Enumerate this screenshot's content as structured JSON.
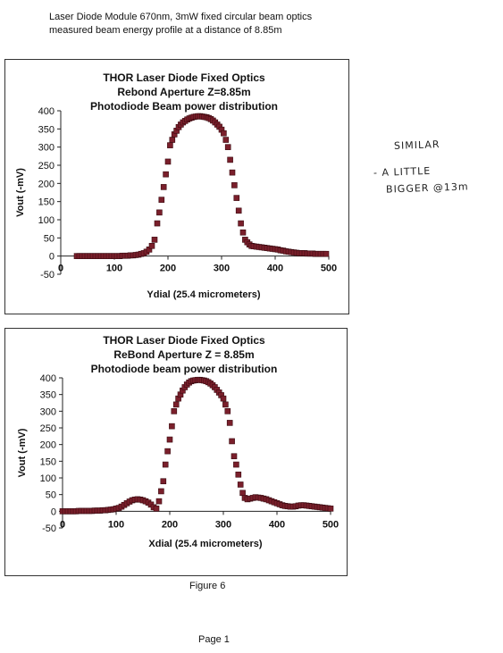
{
  "header": {
    "line1": "Laser Diode Module 670nm, 3mW  fixed circular beam optics",
    "line2": "measured beam energy profile at a distance of 8.85m"
  },
  "annotations": {
    "note1": "SIMILAR",
    "note2": "- A LITTLE",
    "note3": "BIGGER @13m"
  },
  "footer": {
    "figure": "Figure 6",
    "page": "Page 1"
  },
  "colors": {
    "marker_fill": "#7a1f2b",
    "marker_edge": "#3a0a10"
  },
  "chart_data": [
    {
      "type": "scatter",
      "title_lines": [
        "THOR Laser Diode Fixed Optics",
        "Rebond Aperture  Z=8.85m",
        "Photodiode Beam power distribution"
      ],
      "xlabel": "Ydial (25.4 micrometers)",
      "ylabel": "Vout  (-mV)",
      "xlim": [
        0,
        500
      ],
      "ylim": [
        -50,
        400
      ],
      "xticks": [
        0,
        100,
        200,
        300,
        400,
        500
      ],
      "xtick_labels": [
        "0",
        "100",
        "200",
        "300",
        "400",
        "500"
      ],
      "yticks": [
        -50,
        0,
        50,
        100,
        150,
        200,
        250,
        300,
        350,
        400
      ],
      "ytick_labels": [
        "-50",
        "0",
        "50",
        "100",
        "150",
        "200",
        "250",
        "300",
        "350",
        "400"
      ],
      "grid": false,
      "legend": "none",
      "series": [
        {
          "x": [
            30,
            35,
            40,
            45,
            50,
            55,
            60,
            65,
            70,
            75,
            80,
            85,
            90,
            95,
            100,
            105,
            110,
            115,
            120,
            125,
            130,
            135,
            140,
            145,
            150,
            155,
            160,
            165,
            170,
            175,
            180,
            184,
            188,
            192,
            196,
            200,
            204,
            208,
            212,
            216,
            220,
            224,
            228,
            232,
            236,
            240,
            244,
            248,
            252,
            256,
            260,
            264,
            268,
            272,
            276,
            280,
            284,
            288,
            292,
            296,
            300,
            304,
            308,
            312,
            316,
            320,
            324,
            328,
            332,
            336,
            340,
            344,
            348,
            352,
            356,
            360,
            365,
            370,
            375,
            380,
            385,
            390,
            395,
            400,
            405,
            410,
            415,
            420,
            425,
            430,
            435,
            440,
            445,
            450,
            455,
            460,
            465,
            470,
            475,
            480,
            485,
            490,
            495
          ],
          "y": [
            0,
            0,
            0,
            0,
            0,
            0,
            0,
            0,
            0,
            0,
            0,
            0,
            0,
            0,
            0,
            0,
            0,
            1,
            1,
            1,
            2,
            2,
            3,
            4,
            6,
            8,
            12,
            18,
            28,
            45,
            90,
            120,
            155,
            190,
            225,
            260,
            305,
            320,
            335,
            345,
            355,
            362,
            368,
            372,
            376,
            379,
            381,
            383,
            384,
            385,
            385,
            384,
            383,
            382,
            380,
            377,
            373,
            368,
            362,
            356,
            348,
            338,
            320,
            300,
            265,
            230,
            195,
            160,
            125,
            90,
            65,
            45,
            38,
            32,
            28,
            27,
            26,
            25,
            24,
            23,
            22,
            21,
            20,
            19,
            18,
            16,
            15,
            13,
            12,
            11,
            10,
            9,
            8,
            8,
            8,
            7,
            7,
            7,
            6,
            6,
            6,
            6,
            6
          ]
        }
      ]
    },
    {
      "type": "scatter",
      "title_lines": [
        "THOR Laser Diode Fixed Optics",
        "ReBond Aperture  Z = 8.85m",
        "Photodiode beam power distribution"
      ],
      "xlabel": "Xdial (25.4 micrometers)",
      "ylabel": "Vout  (-mV)",
      "xlim": [
        0,
        500
      ],
      "ylim": [
        -50,
        400
      ],
      "xticks": [
        0,
        100,
        200,
        300,
        400,
        500
      ],
      "xtick_labels": [
        "0",
        "100",
        "200",
        "300",
        "400",
        "500"
      ],
      "yticks": [
        -50,
        0,
        50,
        100,
        150,
        200,
        250,
        300,
        350,
        400
      ],
      "ytick_labels": [
        "-50",
        "0",
        "50",
        "100",
        "150",
        "200",
        "250",
        "300",
        "350",
        "400"
      ],
      "grid": false,
      "legend": "none",
      "series": [
        {
          "x": [
            0,
            5,
            10,
            15,
            20,
            25,
            30,
            35,
            40,
            45,
            50,
            55,
            60,
            65,
            70,
            75,
            80,
            85,
            90,
            95,
            100,
            105,
            110,
            115,
            120,
            125,
            130,
            135,
            140,
            145,
            150,
            155,
            160,
            165,
            170,
            175,
            180,
            184,
            188,
            192,
            196,
            200,
            204,
            208,
            212,
            216,
            220,
            224,
            228,
            232,
            236,
            240,
            244,
            248,
            252,
            256,
            260,
            264,
            268,
            272,
            276,
            280,
            284,
            288,
            292,
            296,
            300,
            304,
            308,
            312,
            316,
            320,
            324,
            328,
            332,
            336,
            340,
            345,
            350,
            355,
            360,
            365,
            370,
            375,
            380,
            385,
            390,
            395,
            400,
            405,
            410,
            415,
            420,
            425,
            430,
            435,
            440,
            445,
            450,
            455,
            460,
            465,
            470,
            475,
            480,
            485,
            490,
            495,
            500
          ],
          "y": [
            0,
            0,
            0,
            0,
            0,
            0,
            1,
            1,
            1,
            1,
            1,
            1,
            2,
            2,
            2,
            3,
            3,
            4,
            5,
            6,
            8,
            10,
            14,
            19,
            24,
            29,
            33,
            35,
            36,
            35,
            33,
            30,
            26,
            20,
            12,
            8,
            30,
            60,
            90,
            140,
            180,
            215,
            255,
            300,
            320,
            338,
            350,
            362,
            372,
            380,
            386,
            390,
            392,
            393,
            394,
            394,
            393,
            392,
            390,
            387,
            383,
            378,
            372,
            364,
            356,
            348,
            338,
            320,
            300,
            265,
            210,
            165,
            140,
            110,
            80,
            55,
            40,
            36,
            38,
            40,
            42,
            41,
            40,
            38,
            36,
            33,
            30,
            27,
            24,
            21,
            18,
            16,
            15,
            14,
            14,
            15,
            17,
            18,
            18,
            17,
            16,
            15,
            14,
            13,
            12,
            11,
            10,
            9,
            8
          ]
        }
      ]
    }
  ]
}
